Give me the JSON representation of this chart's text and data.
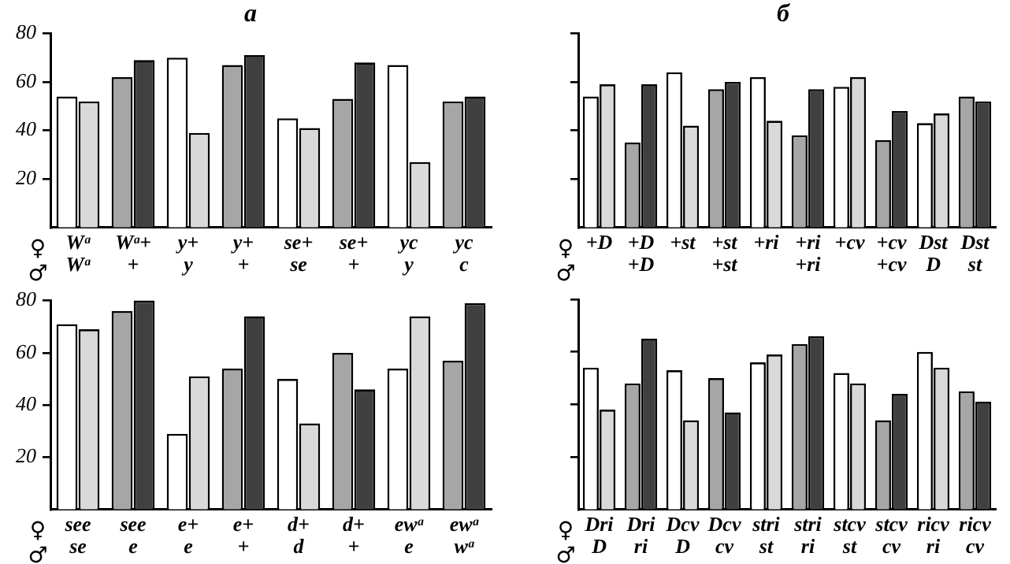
{
  "chart_data": [
    {
      "type": "bar",
      "title": "а",
      "categories": [
        "Wᵃ\nWᵃ",
        "Wᵃ+\n+",
        "y+\ny",
        "y+\n+",
        "se+\nse",
        "se+\n+",
        "yc\ny",
        "yc\nc"
      ],
      "series": [
        {
          "colors": [
            "#ffffff",
            "#a6a6a6",
            "#ffffff",
            "#a6a6a6",
            "#ffffff",
            "#a6a6a6",
            "#ffffff",
            "#a6a6a6"
          ],
          "values": [
            54,
            62,
            70,
            67,
            45,
            53,
            67,
            52
          ]
        },
        {
          "colors": [
            "#d9d9d9",
            "#404040",
            "#d9d9d9",
            "#404040",
            "#d9d9d9",
            "#404040",
            "#d9d9d9",
            "#404040"
          ],
          "values": [
            52,
            69,
            39,
            71,
            41,
            68,
            27,
            54
          ]
        }
      ],
      "ylim": [
        0,
        80
      ],
      "yticks": [
        20,
        40,
        60,
        80
      ],
      "grid": false,
      "legend": false,
      "annotations": [
        "♀",
        "♂"
      ]
    },
    {
      "type": "bar",
      "title": "б",
      "categories": [
        "+D\n",
        "+D\n+D",
        "+st\n",
        "+st\n+st",
        "+ri\n",
        "+ri\n+ri",
        "+cv\n",
        "+cv\n+cv",
        "Dst\nD",
        "Dst\nst"
      ],
      "series": [
        {
          "colors": [
            "#ffffff",
            "#a6a6a6",
            "#ffffff",
            "#a6a6a6",
            "#ffffff",
            "#a6a6a6",
            "#ffffff",
            "#a6a6a6",
            "#ffffff",
            "#a6a6a6"
          ],
          "values": [
            54,
            35,
            64,
            57,
            62,
            38,
            58,
            36,
            43,
            54
          ]
        },
        {
          "colors": [
            "#d9d9d9",
            "#404040",
            "#d9d9d9",
            "#404040",
            "#d9d9d9",
            "#404040",
            "#d9d9d9",
            "#404040",
            "#d9d9d9",
            "#404040"
          ],
          "values": [
            59,
            59,
            42,
            60,
            44,
            57,
            62,
            48,
            47,
            52
          ]
        }
      ],
      "ylim": [
        0,
        80
      ],
      "yticks": [
        20,
        40,
        60,
        80
      ],
      "tick_labels": "x",
      "grid": false,
      "legend": false,
      "annotations": [
        "♀",
        "♂"
      ]
    },
    {
      "type": "bar",
      "categories": [
        "see\nse",
        "see\ne",
        "e+\ne",
        "e+\n+",
        "d+\nd",
        "d+\n+",
        "ewᵃ\ne",
        "ewᵃ\nwᵃ"
      ],
      "series": [
        {
          "colors": [
            "#ffffff",
            "#a6a6a6",
            "#ffffff",
            "#a6a6a6",
            "#ffffff",
            "#a6a6a6",
            "#ffffff",
            "#a6a6a6"
          ],
          "values": [
            71,
            76,
            29,
            54,
            50,
            60,
            54,
            57
          ]
        },
        {
          "colors": [
            "#d9d9d9",
            "#404040",
            "#d9d9d9",
            "#404040",
            "#d9d9d9",
            "#404040",
            "#d9d9d9",
            "#404040"
          ],
          "values": [
            69,
            80,
            51,
            74,
            33,
            46,
            74,
            79
          ]
        }
      ],
      "ylim": [
        0,
        80
      ],
      "yticks": [
        20,
        40,
        60,
        80
      ],
      "grid": false,
      "legend": false,
      "annotations": [
        "♀",
        "♂"
      ]
    },
    {
      "type": "bar",
      "categories": [
        "Dri\nD",
        "Dri\nri",
        "Dcv\nD",
        "Dcv\ncv",
        "stri\nst",
        "stri\nri",
        "stcv\nst",
        "stcv\ncv",
        "ricv\nri",
        "ricv\ncv"
      ],
      "series": [
        {
          "colors": [
            "#ffffff",
            "#a6a6a6",
            "#ffffff",
            "#a6a6a6",
            "#ffffff",
            "#a6a6a6",
            "#ffffff",
            "#a6a6a6",
            "#ffffff",
            "#a6a6a6"
          ],
          "values": [
            54,
            48,
            53,
            50,
            56,
            63,
            52,
            34,
            60,
            45
          ]
        },
        {
          "colors": [
            "#d9d9d9",
            "#404040",
            "#d9d9d9",
            "#404040",
            "#d9d9d9",
            "#404040",
            "#d9d9d9",
            "#404040",
            "#d9d9d9",
            "#404040"
          ],
          "values": [
            38,
            65,
            34,
            37,
            59,
            66,
            48,
            44,
            54,
            41
          ]
        }
      ],
      "ylim": [
        0,
        80
      ],
      "yticks": [
        20,
        40,
        60,
        80
      ],
      "tick_labels": "x",
      "grid": false,
      "legend": false,
      "annotations": [
        "♀",
        "♂"
      ]
    }
  ]
}
